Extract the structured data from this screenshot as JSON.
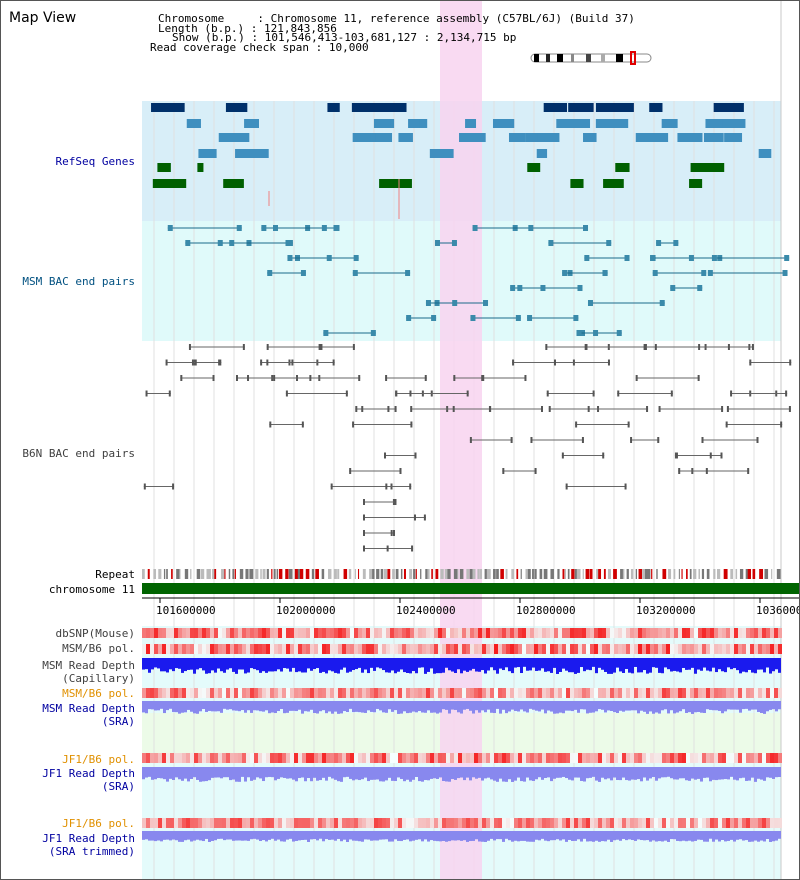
{
  "title": "Map View",
  "info": {
    "chromosome_label": "Chromosome",
    "chromosome_value": "Chromosome 11, reference assembly (C57BL/6J) (Build 37)",
    "length_label": "Length (b.p.)",
    "length_value": "121,843,856",
    "show_label": "Show (b.p.)",
    "show_value": "101,546,413-103,681,127 : 2,134,715 bp",
    "span_label": "Read coverage check span",
    "span_value": "10,000"
  },
  "tracks": {
    "refseq": "RefSeq Genes",
    "msm_bac": "MSM BAC end pairs",
    "b6n_bac": "B6N BAC end pairs",
    "repeat": "Repeat",
    "chromosome": "chromosome 11",
    "dbsnp": "dbSNP(Mouse)",
    "msm_b6_pol_1": "MSM/B6 pol.",
    "msm_depth_cap": [
      "MSM Read Depth",
      "(Capillary)"
    ],
    "msm_b6_pol_2": "MSM/B6 pol.",
    "msm_depth_sra": [
      "MSM Read Depth",
      "(SRA)"
    ],
    "jf1_b6_pol_1": "JF1/B6 pol.",
    "jf1_depth_sra": [
      "JF1 Read Depth",
      "(SRA)"
    ],
    "jf1_b6_pol_2": "JF1/B6 pol.",
    "jf1_depth_trim": [
      "JF1 Read Depth",
      "(SRA trimmed)"
    ]
  },
  "axis_ticks": [
    "101600000",
    "102000000",
    "102400000",
    "102800000",
    "103200000",
    "1036000"
  ],
  "colors": {
    "refseq_bg": "#d8eef8",
    "msm_bg": "#e0fafa",
    "highlight": "#f8d4f0",
    "chromosome_bar": "#006400",
    "depth_blue": "#1a1aee",
    "depth_light": "#8888ee",
    "label_blue": "#0000a0",
    "label_teal": "#005080",
    "label_gray": "#404040",
    "label_orange": "#e09000"
  }
}
